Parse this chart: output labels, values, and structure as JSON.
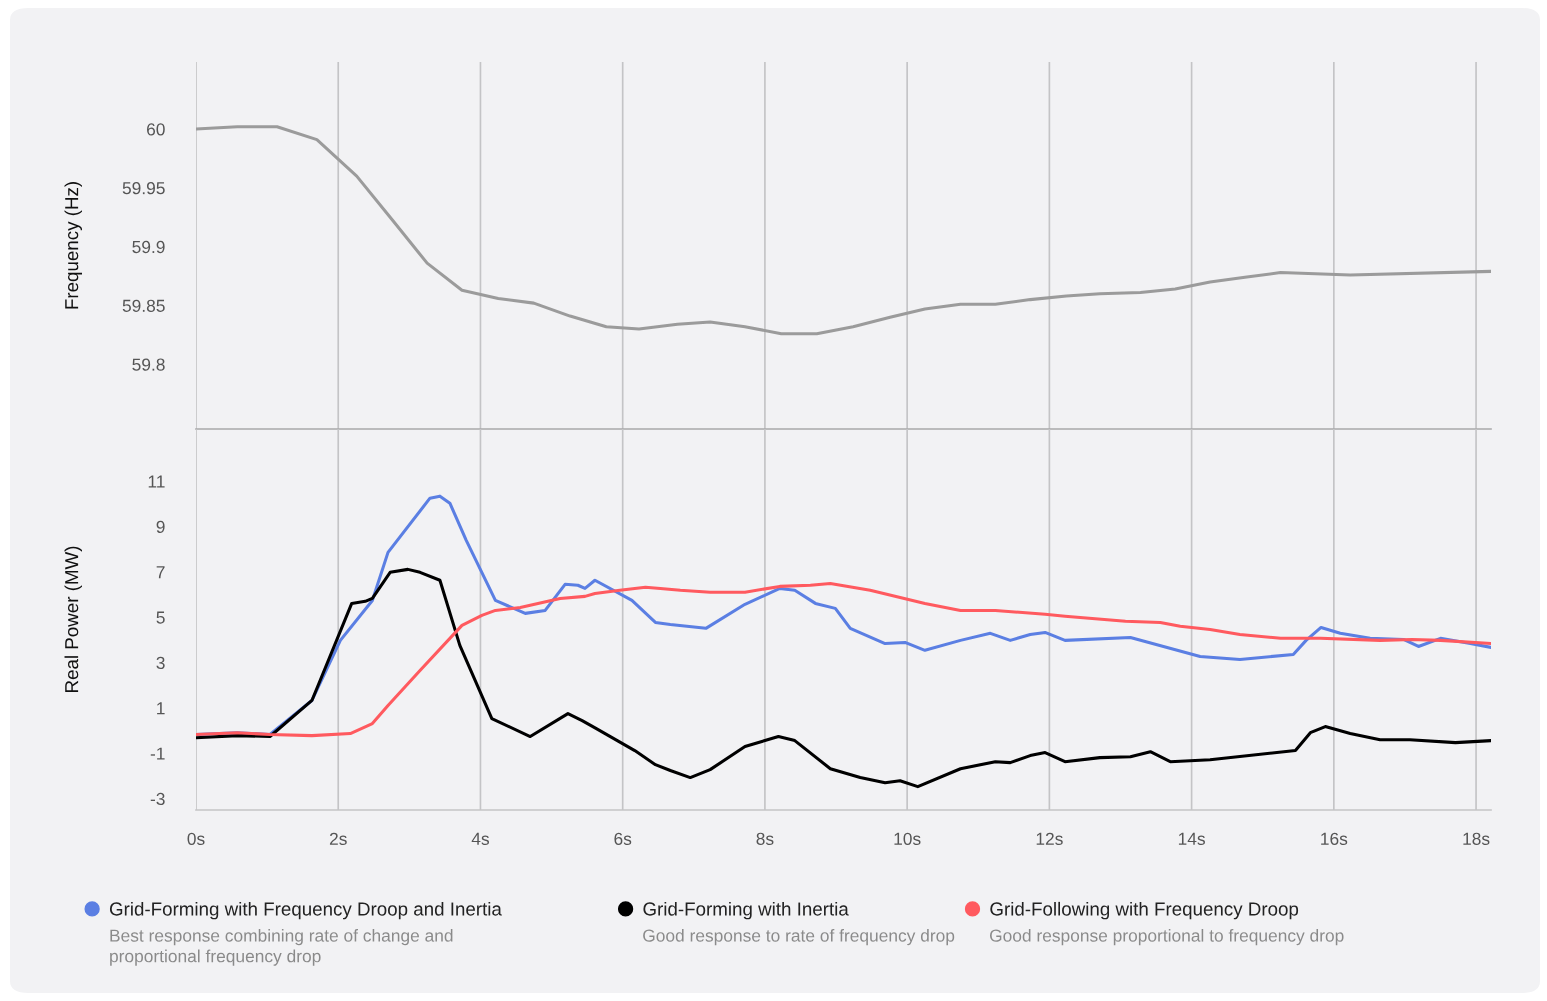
{
  "chart_data": [
    {
      "type": "line",
      "ylabel": "Frequency (Hz)",
      "xlim": [
        0,
        18.21
      ],
      "xticks": [
        {
          "value": 0,
          "label": null
        },
        {
          "value": 2,
          "label": null
        },
        {
          "value": 4,
          "label": null
        },
        {
          "value": 6,
          "label": null
        },
        {
          "value": 8,
          "label": null
        },
        {
          "value": 10,
          "label": null
        },
        {
          "value": 12,
          "label": null
        },
        {
          "value": 14,
          "label": null
        },
        {
          "value": 16,
          "label": null
        },
        {
          "value": 18,
          "label": null
        }
      ],
      "ylim": [
        59.745,
        60.057
      ],
      "yticks": [
        59.8,
        59.85,
        59.9,
        59.95,
        60
      ],
      "tick_labels": "y",
      "grid": "x",
      "legend": false,
      "series": [
        {
          "color": "#9b9b9b",
          "x": [
            0,
            0.58,
            1.14,
            1.7,
            2.26,
            2.77,
            3.25,
            3.74,
            4.25,
            4.75,
            5.26,
            5.77,
            6.23,
            6.77,
            7.23,
            7.72,
            8.23,
            8.73,
            9.24,
            9.76,
            10.25,
            10.75,
            11.24,
            11.73,
            12.24,
            12.71,
            13.28,
            13.77,
            14.26,
            14.75,
            15.25,
            16.23,
            18.21
          ],
          "values": [
            60.0,
            60.002,
            60.002,
            59.991,
            59.96,
            59.922,
            59.886,
            59.863,
            59.856,
            59.852,
            59.841,
            59.832,
            59.83,
            59.834,
            59.836,
            59.832,
            59.826,
            59.826,
            59.832,
            59.84,
            59.847,
            59.851,
            59.851,
            59.855,
            59.858,
            59.86,
            59.861,
            59.864,
            59.87,
            59.874,
            59.878,
            59.876,
            59.879
          ]
        }
      ]
    },
    {
      "type": "line",
      "ylabel": "Real Power (MW)",
      "xlim": [
        0,
        18.21
      ],
      "xticks": [
        {
          "value": 0,
          "label": "0s"
        },
        {
          "value": 2,
          "label": "2s"
        },
        {
          "value": 4,
          "label": "4s"
        },
        {
          "value": 6,
          "label": "6s"
        },
        {
          "value": 8,
          "label": "8s"
        },
        {
          "value": 10,
          "label": "10s"
        },
        {
          "value": 12,
          "label": "12s"
        },
        {
          "value": 14,
          "label": "14s"
        },
        {
          "value": 16,
          "label": "16s"
        },
        {
          "value": 18,
          "label": "18s"
        }
      ],
      "ylim": [
        -3.5,
        13.3
      ],
      "yticks": [
        -3,
        -1,
        1,
        3,
        5,
        7,
        9,
        11
      ],
      "grid": "x",
      "legend": "bottom",
      "annotations": [
        "Best response combining rate of change and\nproportional frequency drop",
        "Good response to rate of frequency drop",
        "Good response proportional to frequency drop"
      ],
      "series": [
        {
          "name": "Grid-Forming with Frequency Droop and Inertia",
          "color": "#5b7fe3",
          "x": [
            0,
            0.58,
            1.04,
            1.63,
            2.03,
            2.48,
            2.7,
            3.29,
            3.43,
            3.57,
            3.8,
            4.21,
            4.63,
            4.91,
            5.19,
            5.37,
            5.47,
            5.61,
            6.13,
            6.46,
            6.67,
            7.17,
            7.72,
            8.21,
            8.42,
            8.71,
            8.99,
            9.2,
            9.69,
            9.97,
            10.25,
            10.75,
            11.17,
            11.45,
            11.73,
            11.94,
            12.22,
            13.14,
            14.12,
            14.68,
            15.43,
            15.61,
            15.82,
            16.09,
            16.51,
            16.98,
            17.19,
            17.5,
            17.92,
            18.21
          ],
          "values": [
            -0.17,
            -0.09,
            -0.17,
            1.33,
            3.98,
            5.74,
            7.86,
            10.25,
            10.34,
            10.03,
            8.39,
            5.74,
            5.17,
            5.3,
            6.45,
            6.41,
            6.27,
            6.63,
            5.74,
            4.77,
            4.68,
            4.51,
            5.57,
            6.27,
            6.19,
            5.61,
            5.39,
            4.51,
            3.84,
            3.89,
            3.54,
            3.98,
            4.29,
            3.98,
            4.24,
            4.33,
            3.98,
            4.11,
            3.27,
            3.14,
            3.36,
            3.98,
            4.55,
            4.29,
            4.07,
            4.02,
            3.71,
            4.07,
            3.84,
            3.67
          ]
        },
        {
          "name": "Grid-Forming with Inertia",
          "color": "#000000",
          "x": [
            0,
            0.58,
            1.04,
            1.63,
            2.19,
            2.38,
            2.48,
            2.73,
            2.98,
            3.15,
            3.43,
            3.71,
            4.16,
            4.7,
            5.23,
            5.43,
            5.63,
            6.17,
            6.46,
            6.67,
            6.95,
            7.23,
            7.72,
            8.19,
            8.42,
            8.92,
            9.34,
            9.69,
            9.9,
            10.15,
            10.75,
            11.24,
            11.45,
            11.73,
            11.94,
            12.22,
            12.71,
            13.14,
            13.42,
            13.7,
            14.26,
            15.46,
            15.67,
            15.88,
            16.23,
            16.65,
            17.07,
            17.71,
            18.21
          ],
          "values": [
            -0.31,
            -0.22,
            -0.26,
            1.33,
            5.61,
            5.7,
            5.83,
            6.98,
            7.11,
            6.98,
            6.63,
            3.76,
            0.53,
            -0.26,
            0.75,
            0.44,
            0.09,
            -0.88,
            -1.5,
            -1.76,
            -2.07,
            -1.72,
            -0.7,
            -0.26,
            -0.44,
            -1.68,
            -2.07,
            -2.3,
            -2.21,
            -2.47,
            -1.68,
            -1.37,
            -1.41,
            -1.1,
            -0.97,
            -1.37,
            -1.19,
            -1.15,
            -0.93,
            -1.37,
            -1.28,
            -0.88,
            -0.09,
            0.18,
            -0.13,
            -0.4,
            -0.4,
            -0.53,
            -0.44
          ]
        },
        {
          "name": "Grid-Following with Frequency Droop",
          "color": "#ff5a5f",
          "x": [
            0,
            0.58,
            1.04,
            1.63,
            2.17,
            2.48,
            2.7,
            3.15,
            3.74,
            4.02,
            4.21,
            4.56,
            5.12,
            5.47,
            5.61,
            5.96,
            6.32,
            6.53,
            6.81,
            7.23,
            7.72,
            8.21,
            8.64,
            8.92,
            9.48,
            10.25,
            10.75,
            11.24,
            11.94,
            12.22,
            13.07,
            13.56,
            13.84,
            14.26,
            14.68,
            15.25,
            15.81,
            16.65,
            17.1,
            17.5,
            18.21
          ],
          "values": [
            -0.17,
            -0.09,
            -0.17,
            -0.22,
            -0.13,
            0.31,
            1.11,
            2.65,
            4.64,
            5.08,
            5.3,
            5.43,
            5.83,
            5.92,
            6.05,
            6.19,
            6.32,
            6.27,
            6.19,
            6.1,
            6.1,
            6.36,
            6.41,
            6.49,
            6.19,
            5.61,
            5.3,
            5.3,
            5.13,
            5.04,
            4.82,
            4.77,
            4.6,
            4.46,
            4.24,
            4.07,
            4.07,
            3.98,
            4.02,
            3.98,
            3.84
          ]
        }
      ]
    }
  ]
}
